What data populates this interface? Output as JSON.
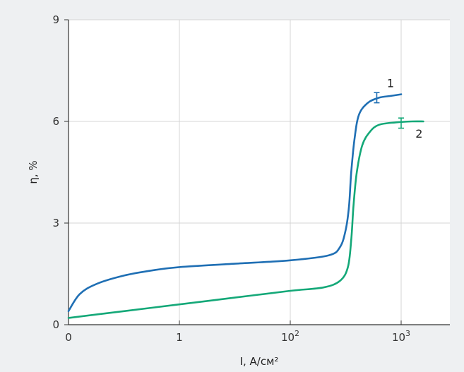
{
  "chart_data": {
    "type": "line",
    "title": "",
    "xlabel": "I, А/см²",
    "ylabel": "η, %",
    "ylim": [
      0,
      9
    ],
    "x_ticks": [
      "0",
      "1",
      "10²",
      "10³"
    ],
    "y_ticks": [
      "0",
      "3",
      "6",
      "9"
    ],
    "grid": true,
    "series": [
      {
        "name": "1",
        "color": "#1f6fb4",
        "points": [
          [
            0,
            0.4
          ],
          [
            0.1,
            0.9
          ],
          [
            0.25,
            1.2
          ],
          [
            0.5,
            1.45
          ],
          [
            0.75,
            1.6
          ],
          [
            1,
            1.7
          ],
          [
            1.5,
            1.8
          ],
          [
            2,
            1.9
          ],
          [
            2.35,
            2.05
          ],
          [
            2.45,
            2.3
          ],
          [
            2.5,
            2.8
          ],
          [
            2.53,
            3.5
          ],
          [
            2.55,
            4.5
          ],
          [
            2.58,
            5.5
          ],
          [
            2.62,
            6.2
          ],
          [
            2.7,
            6.55
          ],
          [
            2.8,
            6.7
          ],
          [
            2.9,
            6.75
          ],
          [
            3.0,
            6.8
          ]
        ],
        "error_bar": {
          "x": 2.78,
          "y": 6.7,
          "err": 0.15
        }
      },
      {
        "name": "2",
        "color": "#14a878",
        "points": [
          [
            0,
            0.2
          ],
          [
            0.5,
            0.4
          ],
          [
            1,
            0.6
          ],
          [
            1.5,
            0.8
          ],
          [
            2,
            1.0
          ],
          [
            2.3,
            1.1
          ],
          [
            2.45,
            1.3
          ],
          [
            2.52,
            1.7
          ],
          [
            2.55,
            2.5
          ],
          [
            2.57,
            3.5
          ],
          [
            2.6,
            4.5
          ],
          [
            2.65,
            5.3
          ],
          [
            2.72,
            5.7
          ],
          [
            2.8,
            5.9
          ],
          [
            2.95,
            5.97
          ],
          [
            3.1,
            6.0
          ],
          [
            3.2,
            6.0
          ]
        ],
        "error_bar": {
          "x": 3.0,
          "y": 5.95,
          "err": 0.15
        }
      }
    ]
  }
}
